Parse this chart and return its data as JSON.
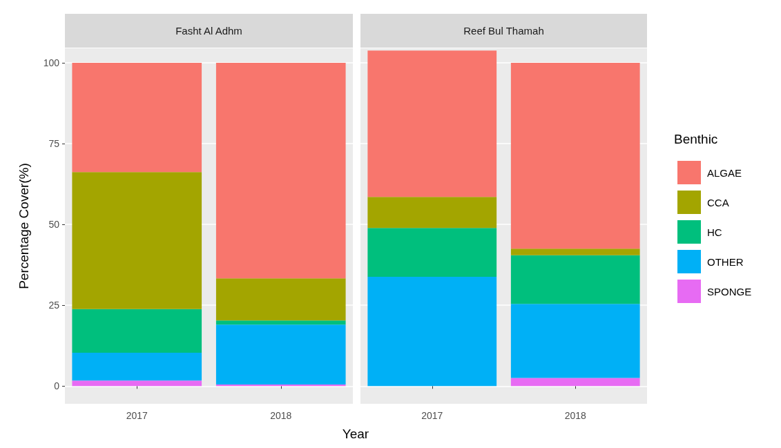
{
  "chart_data": [
    {
      "type": "bar",
      "title": "Fasht Al Adhm",
      "xlabel": "Year",
      "ylabel": "Percentage Cover(%)",
      "categories": [
        "2017",
        "2018"
      ],
      "stacked": true,
      "ylim": [
        -5.5,
        104.5
      ],
      "yticks": [
        0,
        25,
        50,
        75,
        100
      ],
      "grid": true,
      "legend": false,
      "series": [
        {
          "color": "#e76bf3",
          "values": [
            1.7,
            0.5
          ]
        },
        {
          "color": "#00b0f6",
          "values": [
            8.6,
            18.5
          ]
        },
        {
          "color": "#00bf7d",
          "values": [
            13.5,
            1.3
          ]
        },
        {
          "color": "#a3a500",
          "values": [
            42.4,
            13.0
          ]
        },
        {
          "color": "#f8766d",
          "values": [
            33.8,
            66.7
          ]
        }
      ]
    },
    {
      "type": "bar",
      "title": "Reef Bul Thamah",
      "legend_title": "Benthic",
      "categories": [
        "2017",
        "2018"
      ],
      "stacked": true,
      "ylim": [
        -5.5,
        104.5
      ],
      "yticks": [
        0,
        25,
        50,
        75,
        100
      ],
      "tick_labels": "x",
      "grid": true,
      "legend": "right",
      "series": [
        {
          "name": "SPONGE",
          "color": "#e76bf3",
          "values": [
            0,
            2.5
          ]
        },
        {
          "name": "OTHER",
          "color": "#00b0f6",
          "values": [
            33.8,
            22.9
          ]
        },
        {
          "name": "HC",
          "color": "#00bf7d",
          "values": [
            15.1,
            15.1
          ]
        },
        {
          "name": "CCA",
          "color": "#a3a500",
          "values": [
            9.6,
            2.0
          ]
        },
        {
          "name": "ALGAE",
          "color": "#f8766d",
          "values": [
            45.3,
            57.5
          ]
        }
      ]
    }
  ]
}
